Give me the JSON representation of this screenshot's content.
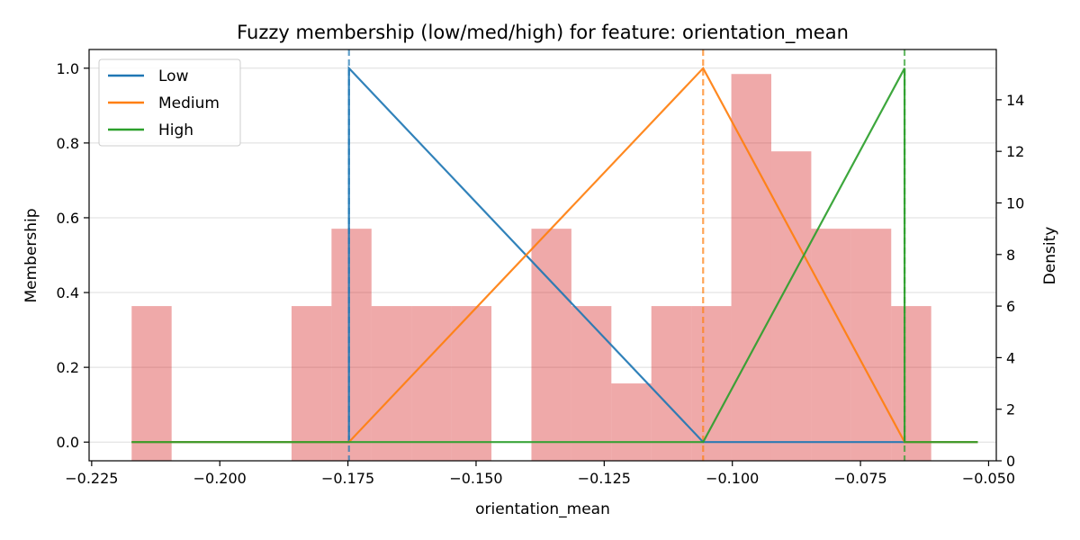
{
  "chart_data": {
    "type": "line",
    "title": "Fuzzy membership (low/med/high) for feature: orientation_mean",
    "xlabel": "orientation_mean",
    "ylabel": "Membership",
    "ylabel_right": "Density",
    "xlim": [
      -0.2255,
      -0.0485
    ],
    "ylim": [
      -0.05,
      1.05
    ],
    "ylim_right": [
      0,
      15.95
    ],
    "xticks": [
      -0.225,
      -0.2,
      -0.175,
      -0.15,
      -0.125,
      -0.1,
      -0.075,
      -0.05
    ],
    "xtick_labels": [
      "−0.225",
      "−0.200",
      "−0.175",
      "−0.150",
      "−0.125",
      "−0.100",
      "−0.075",
      "−0.050"
    ],
    "yticks": [
      0.0,
      0.2,
      0.4,
      0.6,
      0.8,
      1.0
    ],
    "ytick_labels": [
      "0.0",
      "0.2",
      "0.4",
      "0.6",
      "0.8",
      "1.0"
    ],
    "yticks_right": [
      0,
      2,
      4,
      6,
      8,
      10,
      12,
      14
    ],
    "ytick_labels_right": [
      "0",
      "2",
      "4",
      "6",
      "8",
      "10",
      "12",
      "14"
    ],
    "grid": "horizontal",
    "legend_position": "top-left",
    "series": [
      {
        "name": "Low",
        "color": "#1f77b4",
        "x": [
          -0.2172,
          -0.1748,
          -0.1748,
          -0.1057,
          -0.0664,
          -0.0521
        ],
        "y": [
          0,
          0,
          1,
          0,
          0,
          0
        ]
      },
      {
        "name": "Medium",
        "color": "#ff7f0e",
        "x": [
          -0.2172,
          -0.1748,
          -0.1057,
          -0.0664,
          -0.0521
        ],
        "y": [
          0,
          0,
          1,
          0,
          0
        ]
      },
      {
        "name": "High",
        "color": "#2ca02c",
        "x": [
          -0.2172,
          -0.1057,
          -0.0664,
          -0.0664,
          -0.0521
        ],
        "y": [
          0,
          0,
          1,
          0,
          0
        ]
      }
    ],
    "vlines": [
      {
        "x": -0.1748,
        "color": "#1f77b4"
      },
      {
        "x": -0.1057,
        "color": "#ff7f0e"
      },
      {
        "x": -0.0664,
        "color": "#2ca02c"
      }
    ],
    "histogram": {
      "color": "#d62728",
      "bin_start": -0.2172,
      "bin_width": 0.0078,
      "densities": [
        6,
        0,
        0,
        0,
        6,
        9,
        6,
        6,
        6,
        0,
        9,
        6,
        3,
        6,
        6,
        15,
        12,
        9,
        9,
        6
      ]
    }
  }
}
